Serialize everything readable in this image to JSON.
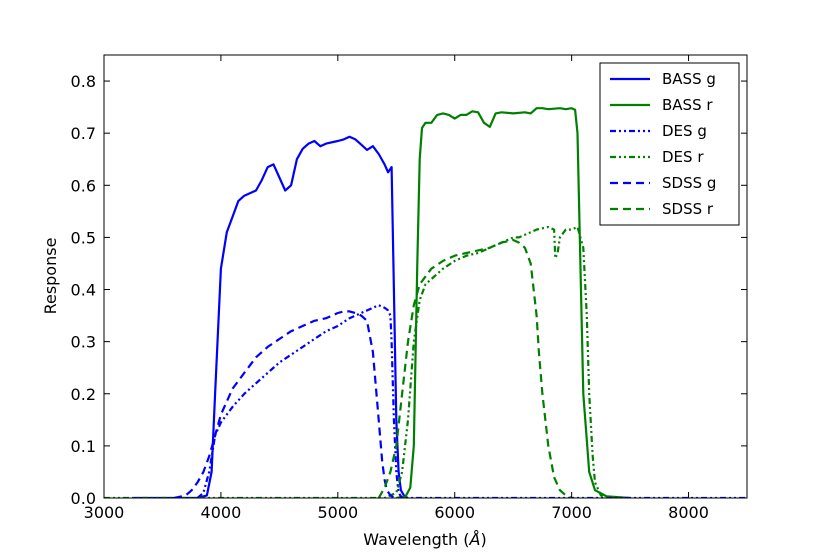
{
  "chart_data": {
    "type": "line",
    "title": "",
    "xlabel": "Wavelength",
    "xlabel_unit": "Å",
    "ylabel": "Response",
    "xlim": [
      3000,
      8500
    ],
    "ylim": [
      0.0,
      0.85
    ],
    "xticks": [
      3000,
      4000,
      5000,
      6000,
      7000,
      8000
    ],
    "yticks": [
      0.0,
      0.1,
      0.2,
      0.3,
      0.4,
      0.5,
      0.6,
      0.7,
      0.8
    ],
    "xtick_labels": [
      "3000",
      "4000",
      "5000",
      "6000",
      "7000",
      "8000"
    ],
    "ytick_labels": [
      "0.0",
      "0.1",
      "0.2",
      "0.3",
      "0.4",
      "0.5",
      "0.6",
      "0.7",
      "0.8"
    ],
    "grid": false,
    "legend_position": "top-right",
    "series": [
      {
        "name": "BASS g",
        "color": "#0000ff",
        "style": "solid",
        "x": [
          3250,
          3800,
          3880,
          3920,
          3950,
          4000,
          4050,
          4100,
          4150,
          4200,
          4300,
          4350,
          4400,
          4450,
          4500,
          4550,
          4600,
          4650,
          4700,
          4750,
          4800,
          4850,
          4900,
          5000,
          5050,
          5100,
          5150,
          5200,
          5250,
          5300,
          5350,
          5400,
          5430,
          5460,
          5480,
          5500,
          5520,
          5540,
          5570,
          5600
        ],
        "y": [
          0.0,
          0.0,
          0.005,
          0.05,
          0.2,
          0.44,
          0.51,
          0.54,
          0.57,
          0.58,
          0.59,
          0.61,
          0.635,
          0.64,
          0.615,
          0.59,
          0.6,
          0.65,
          0.67,
          0.68,
          0.685,
          0.675,
          0.68,
          0.685,
          0.688,
          0.693,
          0.688,
          0.678,
          0.668,
          0.675,
          0.66,
          0.64,
          0.625,
          0.635,
          0.4,
          0.15,
          0.05,
          0.015,
          0.003,
          0.0
        ]
      },
      {
        "name": "BASS r",
        "color": "#008000",
        "style": "solid",
        "x": [
          5500,
          5580,
          5620,
          5650,
          5680,
          5700,
          5720,
          5750,
          5800,
          5850,
          5900,
          5950,
          6000,
          6050,
          6100,
          6150,
          6200,
          6250,
          6300,
          6350,
          6400,
          6500,
          6600,
          6650,
          6700,
          6750,
          6800,
          6900,
          6950,
          7000,
          7030,
          7050,
          7070,
          7100,
          7150,
          7200,
          7300,
          7500
        ],
        "y": [
          0.0,
          0.003,
          0.02,
          0.1,
          0.45,
          0.65,
          0.71,
          0.72,
          0.72,
          0.735,
          0.738,
          0.735,
          0.728,
          0.735,
          0.735,
          0.742,
          0.74,
          0.72,
          0.712,
          0.738,
          0.74,
          0.738,
          0.74,
          0.738,
          0.748,
          0.748,
          0.746,
          0.748,
          0.746,
          0.748,
          0.745,
          0.7,
          0.5,
          0.2,
          0.05,
          0.015,
          0.003,
          0.0
        ]
      },
      {
        "name": "DES g",
        "color": "#0000ff",
        "style": "dashdotdot",
        "x": [
          3800,
          3850,
          3900,
          3950,
          4000,
          4050,
          4100,
          4200,
          4300,
          4400,
          4500,
          4600,
          4700,
          4800,
          4900,
          5000,
          5100,
          5200,
          5300,
          5350,
          5400,
          5430,
          5450,
          5460,
          5480,
          5500,
          5520,
          5550,
          6000,
          8500
        ],
        "y": [
          0.0,
          0.01,
          0.05,
          0.12,
          0.145,
          0.16,
          0.175,
          0.2,
          0.22,
          0.24,
          0.26,
          0.275,
          0.29,
          0.305,
          0.32,
          0.33,
          0.345,
          0.355,
          0.365,
          0.37,
          0.365,
          0.36,
          0.35,
          0.3,
          0.15,
          0.05,
          0.01,
          0.0,
          0.0,
          0.0
        ]
      },
      {
        "name": "DES r",
        "color": "#008000",
        "style": "dashdotdot",
        "x": [
          3000,
          5400,
          5500,
          5550,
          5600,
          5650,
          5700,
          5750,
          5800,
          5900,
          6000,
          6100,
          6200,
          6300,
          6400,
          6500,
          6550,
          6600,
          6700,
          6800,
          6850,
          6860,
          6880,
          6900,
          6950,
          7000,
          7050,
          7100,
          7130,
          7150,
          7180,
          7200,
          7250,
          7300
        ],
        "y": [
          0.0,
          0.0,
          0.01,
          0.05,
          0.15,
          0.3,
          0.38,
          0.41,
          0.42,
          0.44,
          0.455,
          0.465,
          0.47,
          0.48,
          0.49,
          0.5,
          0.5,
          0.505,
          0.515,
          0.52,
          0.515,
          0.46,
          0.47,
          0.5,
          0.515,
          0.515,
          0.52,
          0.48,
          0.35,
          0.2,
          0.08,
          0.03,
          0.005,
          0.0
        ]
      },
      {
        "name": "SDSS g",
        "color": "#0000ff",
        "style": "dashed",
        "x": [
          3600,
          3700,
          3750,
          3800,
          3850,
          3900,
          3950,
          4000,
          4100,
          4200,
          4300,
          4400,
          4500,
          4600,
          4700,
          4800,
          4900,
          5000,
          5050,
          5100,
          5150,
          5200,
          5250,
          5300,
          5350,
          5380,
          5400,
          5420,
          5450,
          5480,
          5500
        ],
        "y": [
          0.0,
          0.005,
          0.015,
          0.03,
          0.05,
          0.08,
          0.12,
          0.16,
          0.21,
          0.24,
          0.27,
          0.29,
          0.305,
          0.32,
          0.33,
          0.34,
          0.345,
          0.355,
          0.358,
          0.358,
          0.355,
          0.35,
          0.34,
          0.28,
          0.15,
          0.07,
          0.035,
          0.015,
          0.005,
          0.001,
          0.0
        ]
      },
      {
        "name": "SDSS r",
        "color": "#008000",
        "style": "dashed",
        "x": [
          5350,
          5400,
          5450,
          5500,
          5550,
          5600,
          5650,
          5700,
          5800,
          5900,
          6000,
          6100,
          6200,
          6300,
          6400,
          6500,
          6550,
          6600,
          6650,
          6700,
          6720,
          6750,
          6800,
          6850,
          6900,
          6950,
          7000
        ],
        "y": [
          0.0,
          0.02,
          0.05,
          0.1,
          0.2,
          0.3,
          0.37,
          0.41,
          0.44,
          0.455,
          0.465,
          0.47,
          0.475,
          0.48,
          0.49,
          0.495,
          0.49,
          0.48,
          0.45,
          0.35,
          0.28,
          0.2,
          0.1,
          0.04,
          0.015,
          0.005,
          0.0
        ]
      }
    ]
  }
}
